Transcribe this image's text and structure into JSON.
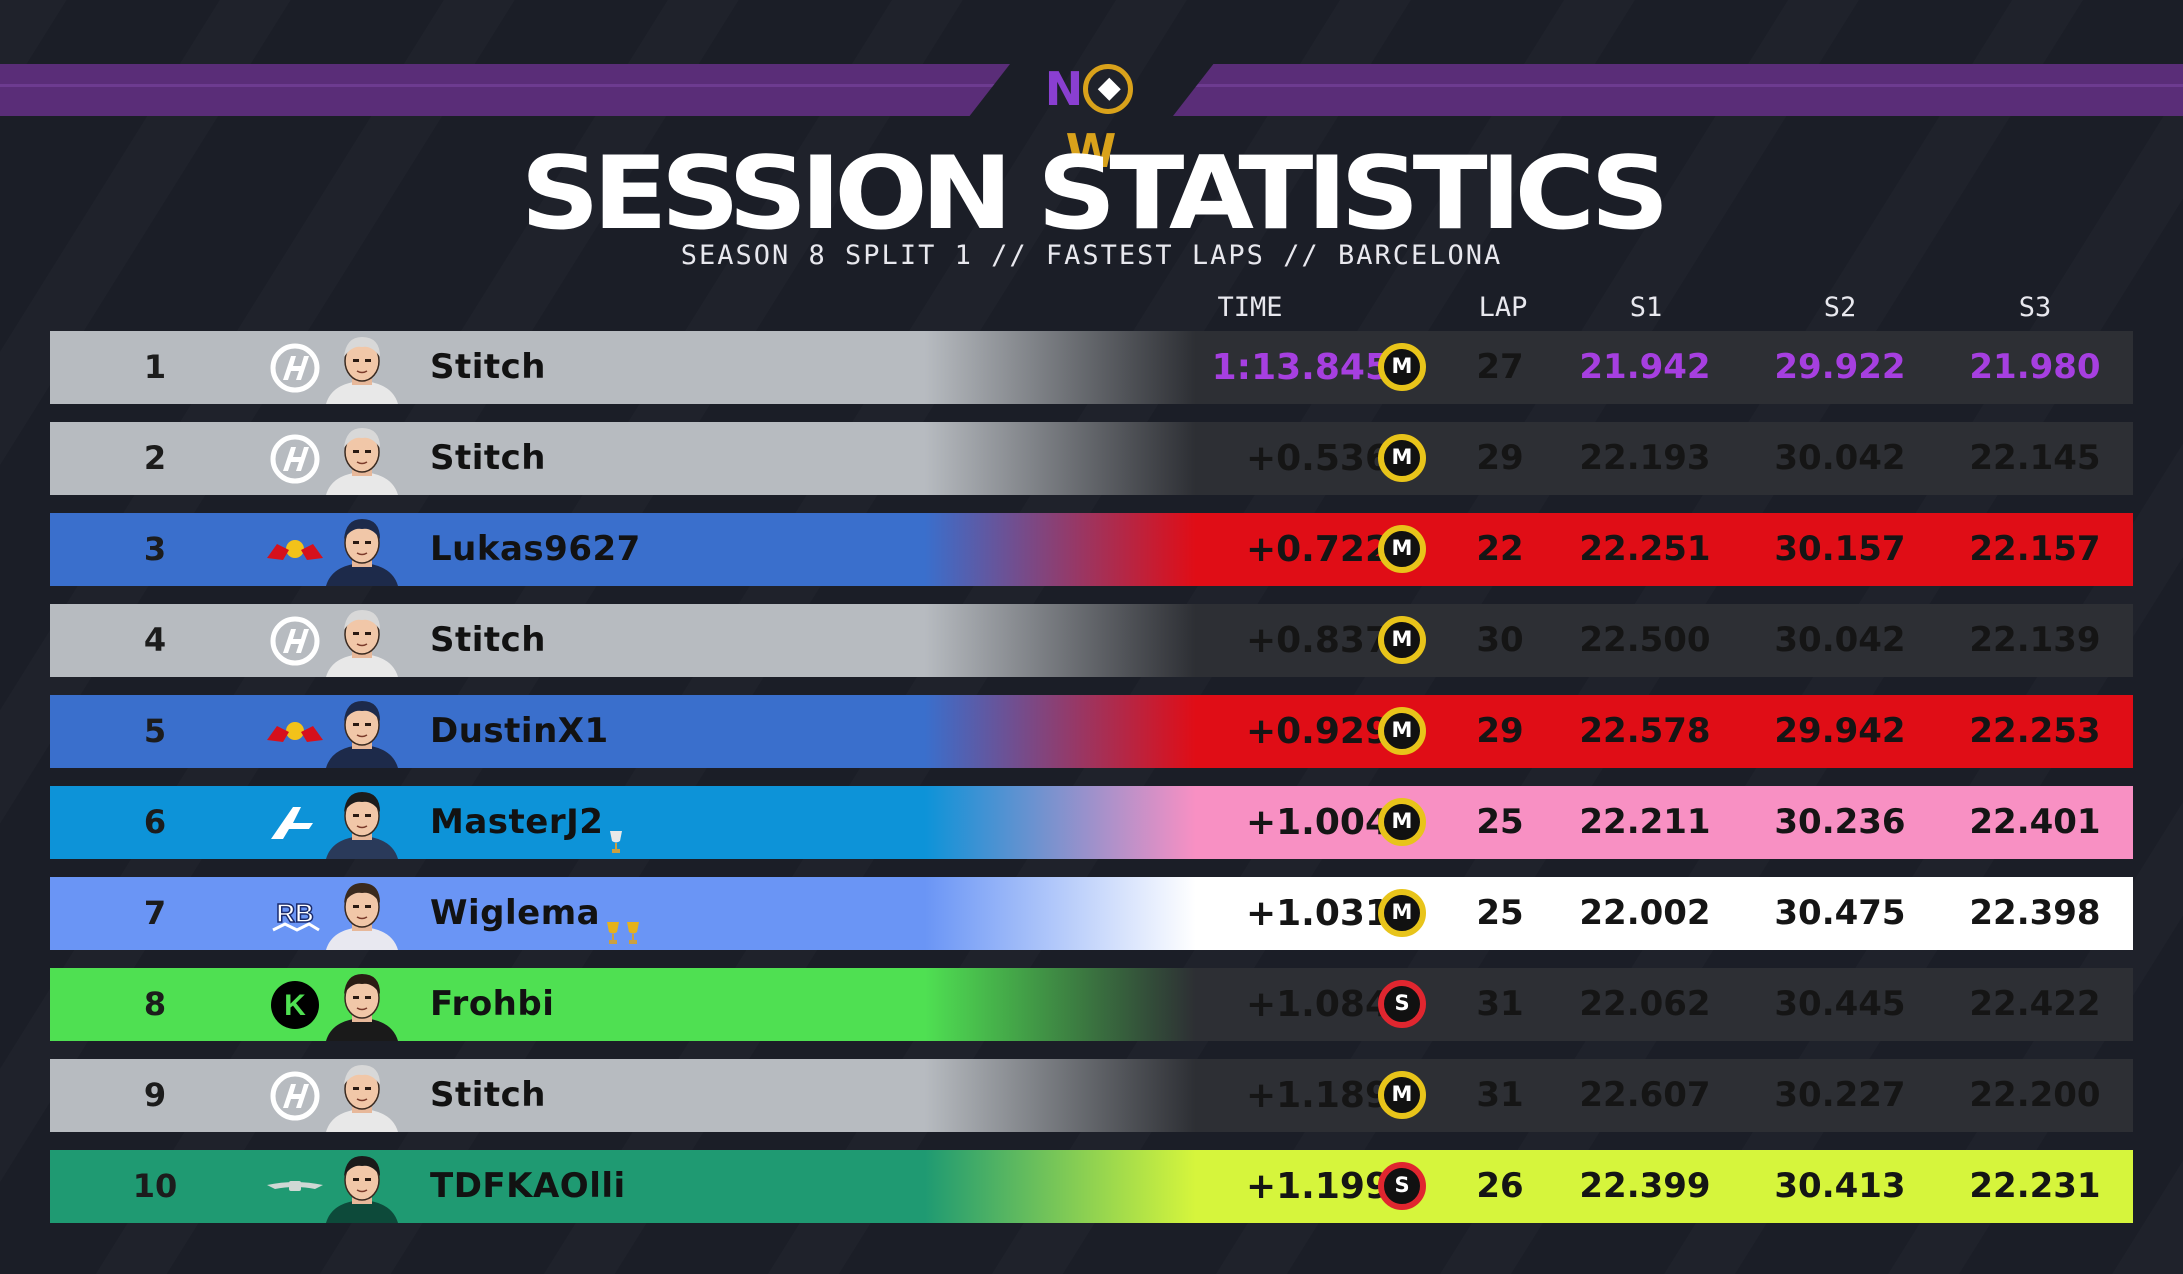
{
  "header": {
    "logo_text": "NOW",
    "title": "SESSION STATISTICS",
    "subtitle": "SEASON 8 SPLIT 1 // FASTEST LAPS // BARCELONA"
  },
  "columns": {
    "time": "TIME",
    "lap": "LAP",
    "s1": "S1",
    "s2": "S2",
    "s3": "S3"
  },
  "colors": {
    "purple_best": "#a63fe0",
    "background": "#1b1e27",
    "band": "#5a2d78",
    "medium_tyre": "#e8c41a",
    "soft_tyre": "#e0262f"
  },
  "rows": [
    {
      "pos": "1",
      "team_icon": "haas-logo-icon",
      "driver": "Stitch",
      "trophies": 0,
      "time": "1:13.845",
      "tyre": "M",
      "lap": "27",
      "s1": "21.942",
      "s2": "29.922",
      "s3": "21.980",
      "left_color": "#b7bbc0",
      "right_color": "#2d2f34",
      "text_color": "#a63fe0",
      "purple": true
    },
    {
      "pos": "2",
      "team_icon": "haas-logo-icon",
      "driver": "Stitch",
      "trophies": 0,
      "time": "+0.536",
      "tyre": "M",
      "lap": "29",
      "s1": "22.193",
      "s2": "30.042",
      "s3": "22.145",
      "left_color": "#b7bbc0",
      "right_color": "#2d2f34",
      "text_color": "#151515"
    },
    {
      "pos": "3",
      "team_icon": "redbull-logo-icon",
      "driver": "Lukas9627",
      "trophies": 0,
      "time": "+0.722",
      "tyre": "M",
      "lap": "22",
      "s1": "22.251",
      "s2": "30.157",
      "s3": "22.157",
      "left_color": "#3a6fcc",
      "right_color": "#e00d16",
      "text_color": "#151515"
    },
    {
      "pos": "4",
      "team_icon": "haas-logo-icon",
      "driver": "Stitch",
      "trophies": 0,
      "time": "+0.837",
      "tyre": "M",
      "lap": "30",
      "s1": "22.500",
      "s2": "30.042",
      "s3": "22.139",
      "left_color": "#b7bbc0",
      "right_color": "#2d2f34",
      "text_color": "#151515"
    },
    {
      "pos": "5",
      "team_icon": "redbull-logo-icon",
      "driver": "DustinX1",
      "trophies": 0,
      "time": "+0.929",
      "tyre": "M",
      "lap": "29",
      "s1": "22.578",
      "s2": "29.942",
      "s3": "22.253",
      "left_color": "#3a6fcc",
      "right_color": "#e00d16",
      "text_color": "#151515"
    },
    {
      "pos": "6",
      "team_icon": "alpine-logo-icon",
      "driver": "MasterJ2",
      "trophies": 1,
      "time": "+1.004",
      "tyre": "M",
      "lap": "25",
      "s1": "22.211",
      "s2": "30.236",
      "s3": "22.401",
      "left_color": "#0d93d8",
      "right_color": "#f890c3",
      "text_color": "#151515"
    },
    {
      "pos": "7",
      "team_icon": "rb-logo-icon",
      "driver": "Wiglema",
      "trophies": 2,
      "time": "+1.031",
      "tyre": "M",
      "lap": "25",
      "s1": "22.002",
      "s2": "30.475",
      "s3": "22.398",
      "left_color": "#6a95f5",
      "right_color": "#ffffff",
      "text_color": "#151515"
    },
    {
      "pos": "8",
      "team_icon": "sauber-logo-icon",
      "driver": "Frohbi",
      "trophies": 0,
      "time": "+1.084",
      "tyre": "S",
      "lap": "31",
      "s1": "22.062",
      "s2": "30.445",
      "s3": "22.422",
      "left_color": "#4fe052",
      "right_color": "#2d2f34",
      "text_color": "#151515"
    },
    {
      "pos": "9",
      "team_icon": "haas-logo-icon",
      "driver": "Stitch",
      "trophies": 0,
      "time": "+1.189",
      "tyre": "M",
      "lap": "31",
      "s1": "22.607",
      "s2": "30.227",
      "s3": "22.200",
      "left_color": "#b7bbc0",
      "right_color": "#2d2f34",
      "text_color": "#151515"
    },
    {
      "pos": "10",
      "team_icon": "astonmartin-logo-icon",
      "driver": "TDFKAOlli",
      "trophies": 0,
      "time": "+1.199",
      "tyre": "S",
      "lap": "26",
      "s1": "22.399",
      "s2": "30.413",
      "s3": "22.231",
      "left_color": "#1f9a72",
      "right_color": "#d6f53c",
      "text_color": "#151515"
    }
  ]
}
